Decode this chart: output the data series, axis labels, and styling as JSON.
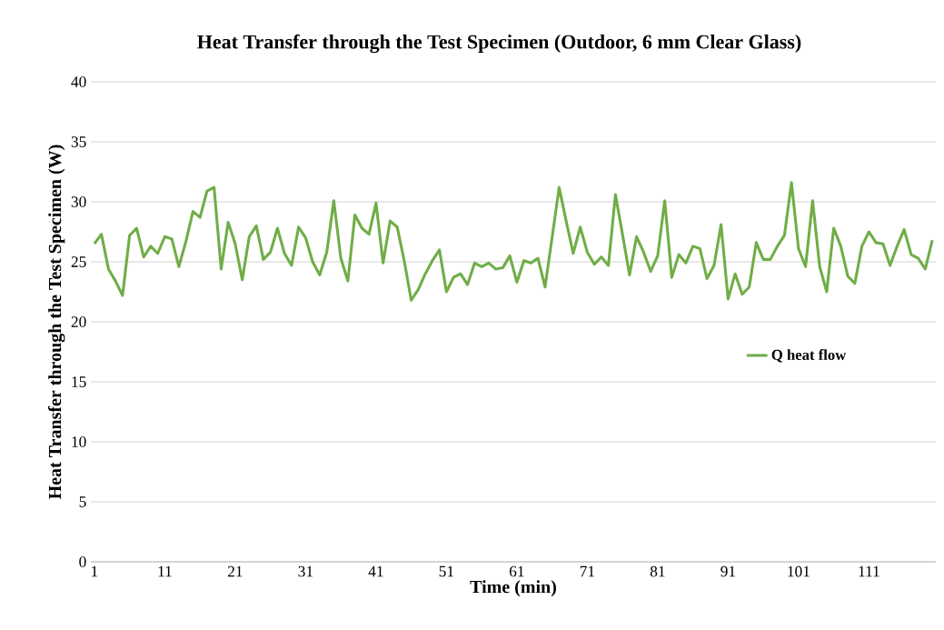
{
  "chart_data": {
    "type": "line",
    "title": "Heat Transfer through the Test Specimen (Outdoor, 6 mm Clear Glass)",
    "xlabel": "Time (min)",
    "ylabel": "Heat Transfer through the Test Specimen (W)",
    "x": [
      1,
      2,
      3,
      4,
      5,
      6,
      7,
      8,
      9,
      10,
      11,
      12,
      13,
      14,
      15,
      16,
      17,
      18,
      19,
      20,
      21,
      22,
      23,
      24,
      25,
      26,
      27,
      28,
      29,
      30,
      31,
      32,
      33,
      34,
      35,
      36,
      37,
      38,
      39,
      40,
      41,
      42,
      43,
      44,
      45,
      46,
      47,
      48,
      49,
      50,
      51,
      52,
      53,
      54,
      55,
      56,
      57,
      58,
      59,
      60,
      61,
      62,
      63,
      64,
      65,
      66,
      67,
      68,
      69,
      70,
      71,
      72,
      73,
      74,
      75,
      76,
      77,
      78,
      79,
      80,
      81,
      82,
      83,
      84,
      85,
      86,
      87,
      88,
      89,
      90,
      91,
      92,
      93,
      94,
      95,
      96,
      97,
      98,
      99,
      100,
      101,
      102,
      103,
      104,
      105,
      106,
      107,
      108,
      109,
      110,
      111,
      112,
      113,
      114,
      115,
      116,
      117,
      118,
      119,
      120
    ],
    "series": [
      {
        "name": "Q heat flow",
        "color": "#70ad47",
        "values": [
          26.5,
          27.3,
          24.4,
          23.4,
          22.2,
          27.2,
          27.8,
          25.4,
          26.3,
          25.7,
          27.1,
          26.9,
          24.6,
          26.7,
          29.2,
          28.7,
          30.9,
          31.2,
          24.4,
          28.3,
          26.5,
          23.5,
          27.1,
          28.0,
          25.2,
          25.8,
          27.8,
          25.7,
          24.7,
          27.9,
          27.0,
          25.0,
          23.9,
          25.8,
          30.1,
          25.3,
          23.4,
          28.9,
          27.8,
          27.3,
          29.9,
          24.9,
          28.4,
          27.9,
          25.1,
          21.8,
          22.7,
          24.0,
          25.1,
          26.0,
          22.5,
          23.7,
          24.0,
          23.1,
          24.9,
          24.6,
          24.9,
          24.4,
          24.5,
          25.5,
          23.3,
          25.1,
          24.9,
          25.3,
          22.9,
          27.0,
          31.2,
          28.4,
          25.7,
          27.9,
          25.8,
          24.8,
          25.4,
          24.7,
          30.6,
          27.3,
          23.9,
          27.1,
          25.8,
          24.2,
          25.5,
          30.1,
          23.7,
          25.6,
          24.9,
          26.3,
          26.1,
          23.6,
          24.7,
          28.1,
          21.9,
          24.0,
          22.3,
          22.9,
          26.6,
          25.2,
          25.2,
          26.3,
          27.2,
          31.6,
          26.1,
          24.6,
          30.1,
          24.6,
          22.5,
          27.8,
          26.3,
          23.8,
          23.2,
          26.3,
          27.5,
          26.6,
          26.5,
          24.7,
          26.3,
          27.7,
          25.6,
          25.3,
          24.4,
          26.8
        ]
      }
    ],
    "xlim": [
      0.5,
      120.5
    ],
    "xticks": [
      1,
      11,
      21,
      31,
      41,
      51,
      61,
      71,
      81,
      91,
      101,
      111
    ],
    "ylim": [
      0,
      40
    ],
    "yticks": [
      0,
      5,
      10,
      15,
      20,
      25,
      30,
      35,
      40
    ],
    "grid": "y",
    "legend": "right",
    "marker": "none",
    "line_style": "solid"
  }
}
